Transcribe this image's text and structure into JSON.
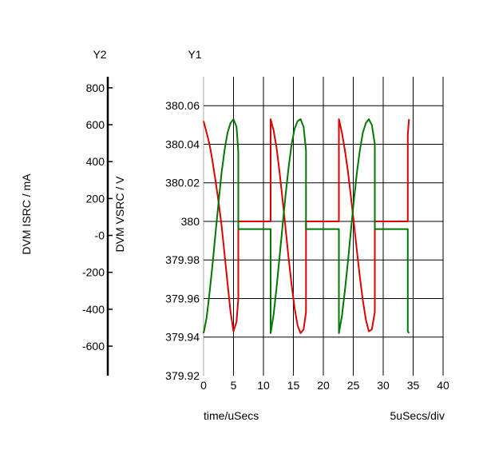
{
  "chart_data": {
    "type": "line",
    "axis_titles": {
      "y2_header": "Y2",
      "y1_header": "Y1"
    },
    "ylabel_left": "DVM ISRC / mA",
    "ylabel_right": "DVM VSRC / V",
    "xlabel": "time/uSecs",
    "x_scale_note": "5uSecs/div",
    "xlim": [
      0,
      40
    ],
    "y1lim": [
      379.92,
      380.075
    ],
    "y2lim": [
      -760,
      860
    ],
    "x_ticks": [
      "0",
      "5",
      "10",
      "15",
      "20",
      "25",
      "30",
      "35",
      "40"
    ],
    "y1_ticks": [
      "380.06",
      "380.04",
      "380.02",
      "380",
      "379.98",
      "379.96",
      "379.94",
      "379.92"
    ],
    "y2_ticks": [
      "800",
      "600",
      "400",
      "200",
      "-0",
      "-200",
      "-400",
      "-600"
    ],
    "grid": true,
    "series": [
      {
        "axis": "y1",
        "color": "#dd0000",
        "x": [
          0,
          0.5,
          1,
          1.5,
          2,
          2.5,
          3,
          3.5,
          4,
          4.5,
          5,
          5.5,
          5.8,
          5.8,
          11.2,
          11.2,
          11.7,
          12.2,
          12.7,
          13.2,
          13.7,
          14.2,
          14.7,
          15.2,
          15.7,
          16.2,
          16.7,
          17.1,
          17.1,
          22.6,
          22.6,
          23.1,
          23.6,
          24.1,
          24.6,
          25.1,
          25.6,
          26.1,
          26.6,
          27.1,
          27.6,
          28.1,
          28.6,
          28.6,
          34.1,
          34.1,
          34.3
        ],
        "y": [
          380.052,
          380.046,
          380.04,
          380.031,
          380.021,
          380.01,
          379.998,
          379.983,
          379.968,
          379.953,
          379.943,
          379.948,
          379.96,
          380.0,
          380.0,
          380.053,
          380.047,
          380.038,
          380.025,
          380.011,
          379.996,
          379.981,
          379.967,
          379.955,
          379.946,
          379.942,
          379.944,
          379.953,
          380.0,
          380.0,
          380.053,
          380.046,
          380.037,
          380.026,
          380.013,
          379.999,
          379.985,
          379.971,
          379.959,
          379.949,
          379.943,
          379.944,
          379.953,
          380.0,
          380.0,
          380.045,
          380.053
        ]
      },
      {
        "axis": "y1",
        "color": "#007700",
        "x": [
          0,
          0.5,
          1,
          1.5,
          2,
          2.5,
          3,
          3.5,
          4,
          4.5,
          5,
          5.5,
          5.8,
          5.8,
          11.2,
          11.2,
          11.7,
          12.2,
          12.7,
          13.2,
          13.7,
          14.2,
          14.7,
          15.2,
          15.7,
          16.2,
          16.7,
          17.1,
          17.1,
          22.6,
          22.6,
          23.1,
          23.6,
          24.1,
          24.6,
          25.1,
          25.6,
          26.1,
          26.6,
          27.1,
          27.6,
          28.1,
          28.6,
          28.6,
          34.1,
          34.1,
          34.3
        ],
        "y": [
          379.942,
          379.95,
          379.963,
          379.978,
          379.994,
          380.01,
          380.025,
          380.037,
          380.046,
          380.051,
          380.053,
          380.049,
          380.036,
          379.996,
          379.996,
          379.942,
          379.952,
          379.966,
          379.982,
          379.998,
          380.014,
          380.028,
          380.04,
          380.048,
          380.052,
          380.053,
          380.049,
          380.037,
          379.996,
          379.996,
          379.942,
          379.951,
          379.964,
          379.979,
          379.995,
          380.011,
          380.025,
          380.037,
          380.046,
          380.051,
          380.053,
          380.05,
          380.04,
          379.996,
          379.996,
          379.943,
          379.942
        ]
      }
    ]
  }
}
